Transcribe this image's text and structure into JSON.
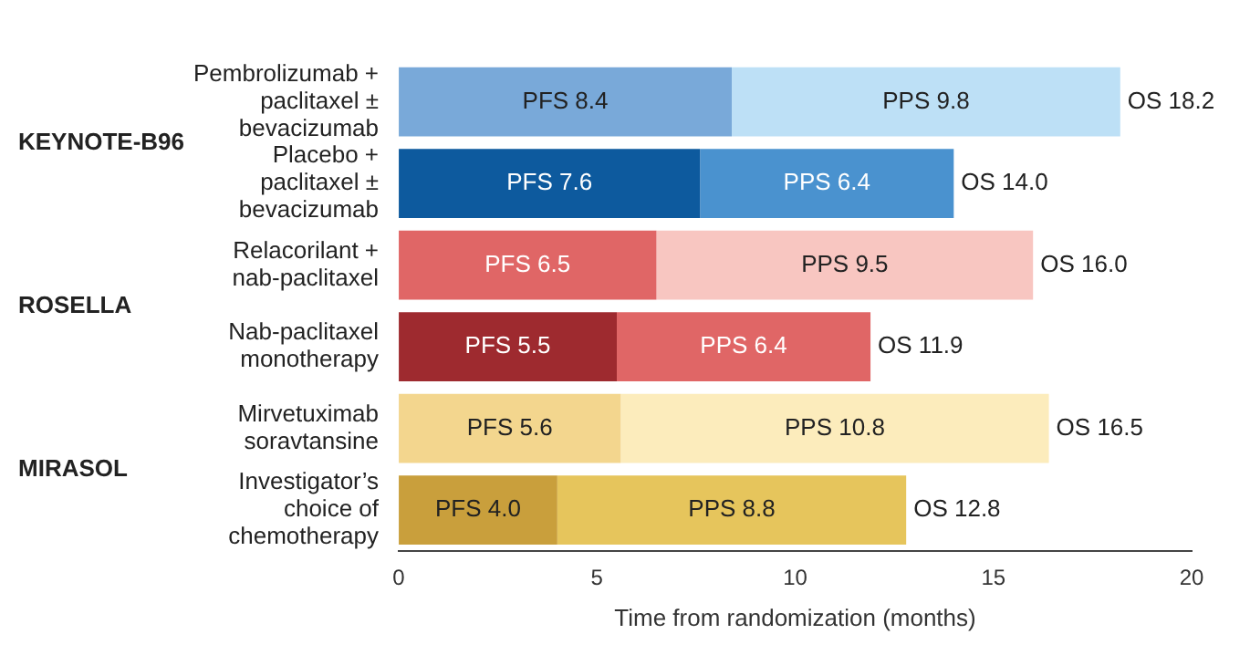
{
  "chart_data": {
    "type": "bar",
    "orientation": "horizontal",
    "stacked": true,
    "categories": [
      "Pembrolizumab +\npaclitaxel ±\nbevacizumab",
      "Placebo +\npaclitaxel ±\nbevacizumab",
      "Relacorilant +\nnab-paclitaxel",
      "Nab-paclitaxel\nmonotherapy",
      "Mirvetuximab\nsoravtansine",
      "Investigator’s\nchoice of\nchemotherapy"
    ],
    "series": [
      {
        "values": [
          8.4,
          7.6,
          6.5,
          5.5,
          5.6,
          4.0
        ],
        "colors": [
          "#79a9d9",
          "#0d5a9e",
          "#e06666",
          "#9e2a2f",
          "#f3d68e",
          "#c99f3c"
        ],
        "value_labels": [
          "PFS 8.4",
          "PFS 7.6",
          "PFS 6.5",
          "PFS 5.5",
          "PFS 5.6",
          "PFS 4.0"
        ]
      },
      {
        "values": [
          9.8,
          6.4,
          9.5,
          6.4,
          10.8,
          8.8
        ],
        "colors": [
          "#bde0f6",
          "#4a92cf",
          "#f8c6c1",
          "#e06666",
          "#fcecbc",
          "#e6c55c"
        ],
        "value_labels": [
          "PPS 9.8",
          "PPS 6.4",
          "PPS 9.5",
          "PPS 6.4",
          "PPS 10.8",
          "PPS 8.8"
        ]
      }
    ],
    "totals": [
      "OS 18.2",
      "OS 14.0",
      "OS 16.0",
      "OS 11.9",
      "OS 16.5",
      "OS 12.8"
    ],
    "annotations": [
      "KEYNOTE-B96",
      "ROSELLA",
      "MIRASOL"
    ],
    "xlabel": "Time from randomization (months)",
    "xlim": [
      0,
      20
    ],
    "xticks": [
      0,
      5,
      10,
      15,
      20
    ],
    "grid": false,
    "legend": false
  }
}
